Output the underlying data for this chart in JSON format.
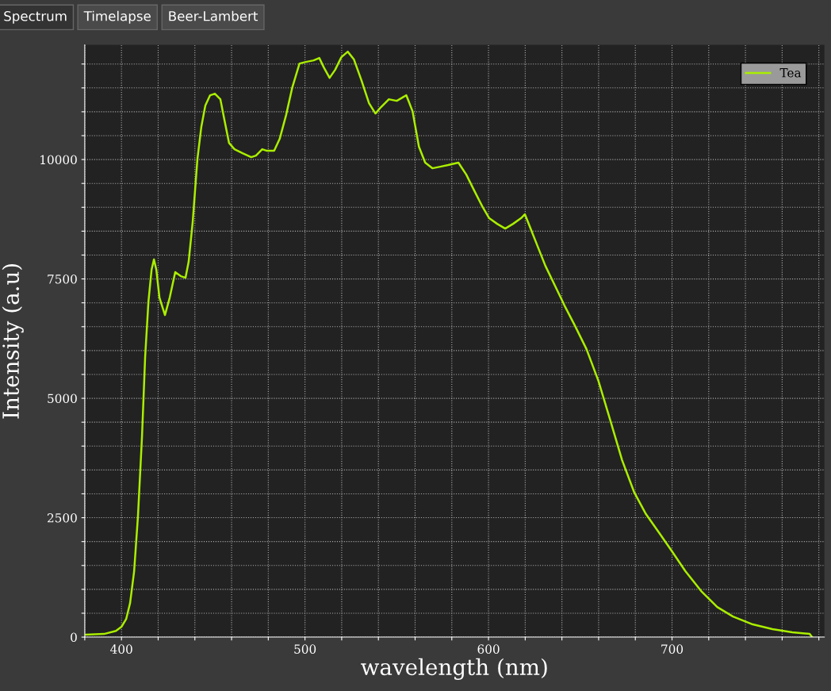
{
  "chart_data": {
    "type": "line",
    "xlabel": "wavelength (nm)",
    "ylabel": "Intensity (a.u)",
    "annotations": [
      "Spectrum",
      "Timelapse",
      "Beer-Lambert"
    ],
    "xlim": [
      380,
      783
    ],
    "ylim": [
      0,
      12400
    ],
    "xticks": [
      {
        "value": 380,
        "label": null
      },
      400,
      {
        "value": 420,
        "label": null
      },
      {
        "value": 440,
        "label": null
      },
      {
        "value": 460,
        "label": null
      },
      {
        "value": 480,
        "label": null
      },
      500,
      {
        "value": 520,
        "label": null
      },
      {
        "value": 540,
        "label": null
      },
      {
        "value": 560,
        "label": null
      },
      {
        "value": 580,
        "label": null
      },
      600,
      {
        "value": 620,
        "label": null
      },
      {
        "value": 640,
        "label": null
      },
      {
        "value": 660,
        "label": null
      },
      {
        "value": 680,
        "label": null
      },
      700,
      {
        "value": 720,
        "label": null
      },
      {
        "value": 740,
        "label": null
      },
      {
        "value": 760,
        "label": null
      },
      {
        "value": 780,
        "label": null
      }
    ],
    "yticks": [
      0,
      {
        "value": 500,
        "label": null
      },
      {
        "value": 1000,
        "label": null
      },
      {
        "value": 1500,
        "label": null
      },
      {
        "value": 2000,
        "label": null
      },
      2500,
      {
        "value": 3000,
        "label": null
      },
      {
        "value": 3500,
        "label": null
      },
      {
        "value": 4000,
        "label": null
      },
      {
        "value": 4500,
        "label": null
      },
      5000,
      {
        "value": 5500,
        "label": null
      },
      {
        "value": 6000,
        "label": null
      },
      {
        "value": 6500,
        "label": null
      },
      {
        "value": 7000,
        "label": null
      },
      7500,
      {
        "value": 8000,
        "label": null
      },
      {
        "value": 8500,
        "label": null
      },
      {
        "value": 9000,
        "label": null
      },
      {
        "value": 9500,
        "label": null
      },
      10000,
      {
        "value": 10500,
        "label": null
      },
      {
        "value": 11000,
        "label": null
      },
      {
        "value": 11500,
        "label": null
      },
      {
        "value": 12000,
        "label": null
      }
    ],
    "grid": true,
    "legend": "top right",
    "line_style": "solid",
    "series": [
      {
        "name": "Tea",
        "color": "#aaee00",
        "x": [
          380.6,
          390.5,
          397,
          400,
          402.6,
          404.7,
          406.9,
          409,
          411.2,
          412.9,
          414.7,
          416.4,
          417.7,
          419,
          420.7,
          423.7,
          426.3,
          429.3,
          432.3,
          434.9,
          436.6,
          438.8,
          441.4,
          443.5,
          445.7,
          448.3,
          450.9,
          453.9,
          456,
          458.6,
          461.6,
          466,
          470.7,
          473.3,
          476.7,
          479.3,
          483.2,
          486.2,
          489.7,
          493.1,
          497,
          500.4,
          504.7,
          507.8,
          510.3,
          513.4,
          516.4,
          519.8,
          523.3,
          526.7,
          530.6,
          534.9,
          538.4,
          541.4,
          545.7,
          550,
          555.2,
          558.6,
          562.1,
          565.5,
          569.4,
          573.7,
          578,
          583.6,
          587.9,
          592.2,
          596.6,
          600.4,
          604.7,
          609.1,
          613.4,
          617.7,
          619.8,
          622.4,
          626.7,
          631,
          636.2,
          641.4,
          647,
          653.4,
          659.9,
          666.4,
          672.8,
          679.3,
          685.8,
          693.1,
          700,
          707.3,
          715.9,
          724.6,
          733.2,
          744,
          754.7,
          765.5,
          775,
          776.3
        ],
        "values": [
          50,
          66,
          130,
          216,
          382,
          714,
          1379,
          2541,
          4203,
          5864,
          7027,
          7691,
          7907,
          7691,
          7110,
          6744,
          7110,
          7641,
          7558,
          7525,
          7857,
          8688,
          10017,
          10681,
          11130,
          11346,
          11379,
          11262,
          10847,
          10349,
          10216,
          10133,
          10050,
          10083,
          10216,
          10183,
          10183,
          10432,
          10930,
          11512,
          12010,
          12043,
          12076,
          12126,
          11927,
          11711,
          11877,
          12143,
          12259,
          12093,
          11678,
          11180,
          10964,
          11097,
          11262,
          11229,
          11346,
          11013,
          10266,
          9934,
          9817,
          9850,
          9884,
          9934,
          9684,
          9352,
          9020,
          8771,
          8654,
          8555,
          8654,
          8771,
          8854,
          8605,
          8189,
          7774,
          7359,
          6944,
          6528,
          6030,
          5365,
          4535,
          3704,
          3040,
          2575,
          2176,
          1794,
          1379,
          963,
          631,
          432,
          266,
          166,
          100,
          66,
          0
        ]
      }
    ]
  }
}
